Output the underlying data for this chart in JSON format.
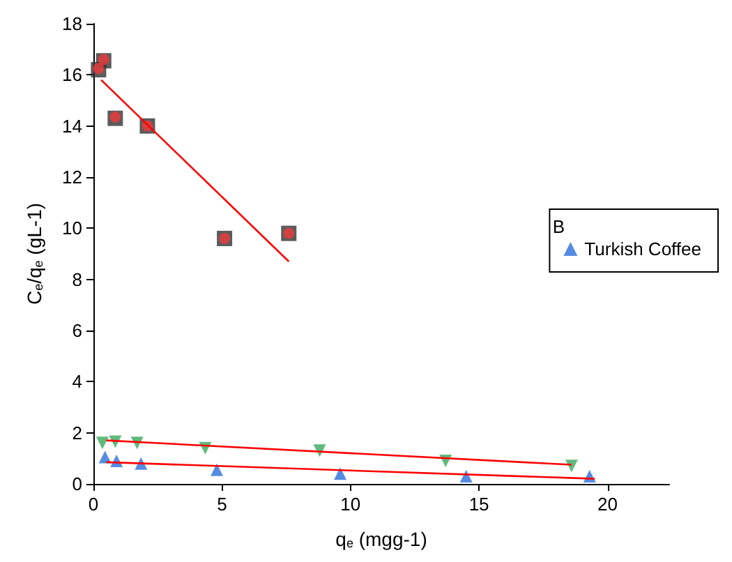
{
  "chart_data": {
    "type": "scatter",
    "xlabel": "q$_{e}$ (mgg-1)",
    "ylabel": "C$_{e}$/q$_{e}$ (gL-1)",
    "legend_title": "B",
    "xlim": [
      0,
      22.4
    ],
    "xticks": [
      0,
      5,
      10,
      15,
      20
    ],
    "ylim": [
      0,
      18
    ],
    "yticks": [
      0,
      2,
      4,
      6,
      8,
      10,
      12,
      14,
      16,
      18
    ],
    "grid": false,
    "legend": "right",
    "series": [
      {
        "color": "#333333",
        "marker": "square",
        "x": [
          0.2,
          0.4,
          0.85,
          2.1,
          5.1,
          7.6
        ],
        "values": [
          16.2,
          16.55,
          14.3,
          14.0,
          9.6,
          9.8
        ]
      },
      {
        "color": "#ee3b3b",
        "marker": "circle",
        "x": [
          0.2,
          0.4,
          0.85,
          2.1,
          5.1,
          7.6
        ],
        "values": [
          16.25,
          16.6,
          14.35,
          14.0,
          9.6,
          9.8
        ]
      },
      {
        "name": "Turkish Coffee",
        "color": "#2a6fdb",
        "marker": "triangle",
        "x": [
          0.45,
          0.9,
          1.85,
          4.8,
          9.6,
          14.5,
          19.3
        ],
        "values": [
          1.05,
          0.9,
          0.8,
          0.55,
          0.4,
          0.3,
          0.3
        ]
      },
      {
        "color": "#3aa85a",
        "marker": "triangle-down",
        "x": [
          0.35,
          0.85,
          1.7,
          4.35,
          8.8,
          13.7,
          18.6
        ],
        "values": [
          1.6,
          1.65,
          1.6,
          1.4,
          1.3,
          0.9,
          0.7
        ]
      },
      {
        "type": "line",
        "color": "#ff0000",
        "marker": "none",
        "x": [
          0.3,
          7.6
        ],
        "values": [
          15.8,
          8.7
        ]
      },
      {
        "type": "line",
        "color": "#ff0000",
        "marker": "none",
        "x": [
          0.5,
          19.5
        ],
        "values": [
          0.85,
          0.2
        ]
      },
      {
        "type": "line",
        "color": "#ff0000",
        "marker": "none",
        "x": [
          0.5,
          18.6
        ],
        "values": [
          1.7,
          0.75
        ]
      }
    ]
  }
}
